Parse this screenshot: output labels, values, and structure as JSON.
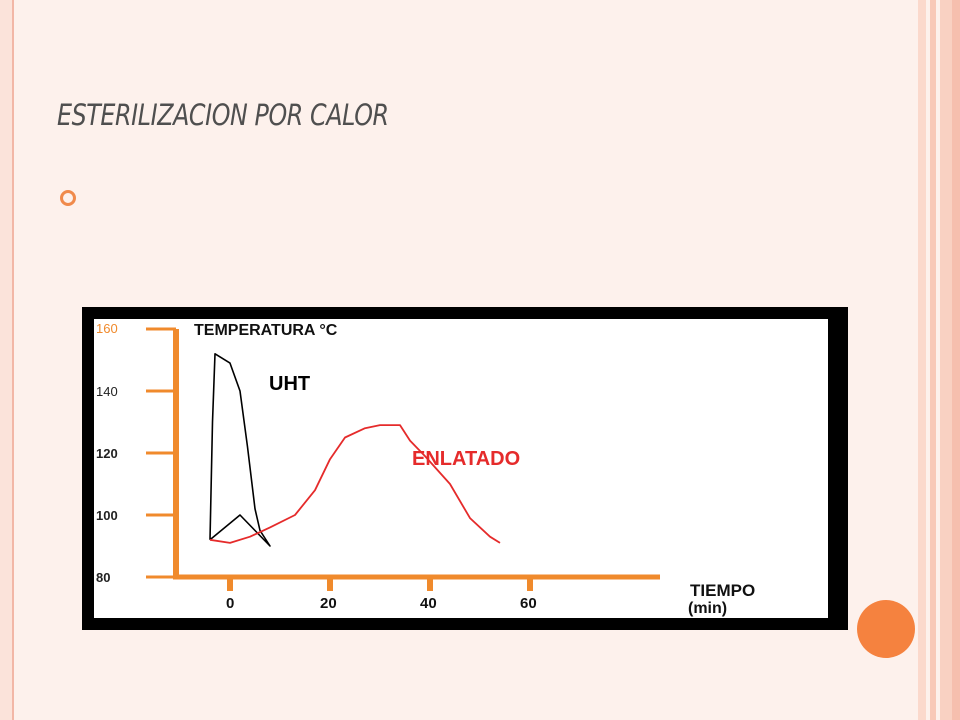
{
  "slide": {
    "title": "ESTERILIZACION POR CALOR",
    "bullet_icon": "hollow-circle-bullet-icon",
    "colors": {
      "background": "#fdf1ec",
      "accent": "#f5823f",
      "axis": "#f08a2c",
      "enlatado": "#e52b2b",
      "uht": "#000000"
    }
  },
  "chart_data": {
    "type": "line",
    "title": "",
    "ylabel": "TEMPERATURA °C",
    "xlabel": "TIEMPO",
    "xlabel_unit": "(min)",
    "x_ticks": [
      "0",
      "20",
      "40",
      "60"
    ],
    "y_ticks": [
      "160",
      "140",
      "120",
      "100",
      "80"
    ],
    "xlim": [
      -12,
      90
    ],
    "ylim": [
      80,
      160
    ],
    "series": [
      {
        "name": "UHT",
        "color": "#000000",
        "points": [
          [
            -4,
            92
          ],
          [
            -3.5,
            130
          ],
          [
            -3,
            152
          ],
          [
            0,
            149
          ],
          [
            2,
            140
          ],
          [
            3.5,
            122
          ],
          [
            5,
            102
          ],
          [
            6,
            95
          ],
          [
            8,
            90
          ]
        ],
        "points_back": [
          [
            5,
            95
          ],
          [
            2,
            100
          ],
          [
            -4,
            92
          ]
        ]
      },
      {
        "name": "ENLATADO",
        "color": "#e52b2b",
        "points": [
          [
            -4,
            92
          ],
          [
            0,
            91
          ],
          [
            4,
            93
          ],
          [
            8,
            96
          ],
          [
            13,
            100
          ],
          [
            17,
            108
          ],
          [
            20,
            118
          ],
          [
            23,
            125
          ],
          [
            27,
            128
          ],
          [
            30,
            129
          ],
          [
            34,
            129
          ],
          [
            36,
            124
          ],
          [
            39,
            119
          ],
          [
            44,
            110
          ],
          [
            48,
            99
          ],
          [
            52,
            93
          ],
          [
            54,
            91
          ]
        ]
      }
    ]
  }
}
